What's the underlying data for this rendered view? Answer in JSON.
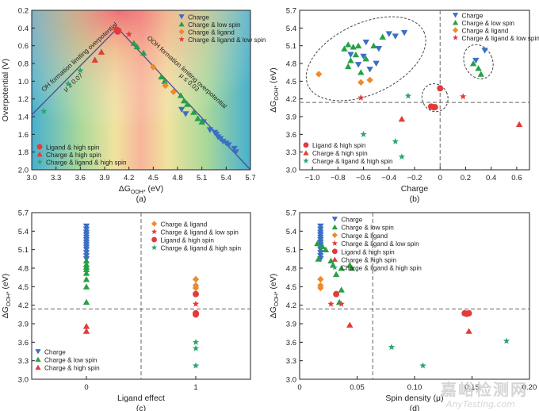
{
  "colors": {
    "charge": "#3a6fc4",
    "charge_low_spin": "#27a046",
    "charge_ligand": "#ef8a2a",
    "charge_ligand_low_spin": "#e23b3b",
    "ligand_high_spin": "#e23b3b",
    "charge_high_spin": "#e23b3b",
    "charge_ligand_high_spin": "#2fa56e",
    "dashed": "#666666",
    "line": "#4b4b9a"
  },
  "watermark": {
    "cn": "嘉峪检测网",
    "en": "AnyTesting.com"
  },
  "chart_data": [
    {
      "type": "scatter",
      "panel_label": "(a)",
      "xlabel": "ΔG",
      "xlabel_sub": "OOH*",
      "xlabel_unit": " (eV)",
      "ylabel": "Overpotential (V)",
      "xlim": [
        3.0,
        5.7
      ],
      "ylim": [
        0.2,
        2.0
      ],
      "y_inverted": true,
      "xticks": [
        "3.0",
        "3.3",
        "3.6",
        "3.9",
        "4.2",
        "4.5",
        "4.8",
        "5.1",
        "5.4",
        "5.7"
      ],
      "yticks": [
        "0.2",
        "0.4",
        "0.6",
        "0.8",
        "1.0",
        "1.2",
        "1.4",
        "1.6",
        "1.8",
        "2.0"
      ],
      "volcano_peak": [
        4.06,
        0.4
      ],
      "annotations": {
        "left_line": "OH formation limiting overpotential",
        "right_line": "OOH formation limiting overpotential",
        "left_mu": "μ ≥ 0.07",
        "right_mu": "μ ≤ 0.03"
      },
      "legend_top": [
        "Charge",
        "Charge & low spin",
        "Charge & ligand",
        "Charge & ligand & low spin"
      ],
      "legend_bottom": [
        "Ligand & high spin",
        "Charge & high spin",
        "Charge & ligand & high spin"
      ],
      "series": [
        {
          "name": "Charge",
          "marker": "tri-down",
          "color": "#3a6fc4",
          "points": [
            [
              4.85,
              1.32
            ],
            [
              4.9,
              1.37
            ],
            [
              5.12,
              1.46
            ],
            [
              5.2,
              1.55
            ],
            [
              5.26,
              1.58
            ],
            [
              5.28,
              1.6
            ],
            [
              5.3,
              1.63
            ],
            [
              5.33,
              1.65
            ],
            [
              5.36,
              1.68
            ],
            [
              5.4,
              1.7
            ],
            [
              5.43,
              1.72
            ],
            [
              5.5,
              1.76
            ],
            [
              5.52,
              1.8
            ]
          ]
        },
        {
          "name": "Charge & low spin",
          "marker": "tri-up",
          "color": "#27a046",
          "points": [
            [
              4.26,
              0.57
            ],
            [
              4.3,
              0.61
            ],
            [
              4.38,
              0.68
            ],
            [
              4.6,
              0.95
            ],
            [
              4.64,
              1.0
            ],
            [
              4.84,
              1.16
            ],
            [
              4.88,
              1.22
            ],
            [
              4.92,
              1.26
            ],
            [
              5.0,
              1.35
            ],
            [
              5.05,
              1.42
            ],
            [
              5.1,
              1.46
            ]
          ]
        },
        {
          "name": "Charge & ligand",
          "marker": "diamond",
          "color": "#ef8a2a",
          "points": [
            [
              4.5,
              0.84
            ],
            [
              4.65,
              1.05
            ],
            [
              4.75,
              1.12
            ]
          ]
        },
        {
          "name": "Charge & ligand & low spin",
          "marker": "star",
          "color": "#e23b3b",
          "points": [
            [
              4.2,
              0.47
            ]
          ]
        },
        {
          "name": "Ligand & high spin",
          "marker": "circle",
          "color": "#e23b3b",
          "points": [
            [
              4.05,
              0.42
            ],
            [
              4.06,
              0.44
            ],
            [
              4.07,
              0.43
            ]
          ]
        },
        {
          "name": "Charge & high spin",
          "marker": "tri-up",
          "color": "#e23b3b",
          "points": [
            [
              3.78,
              0.76
            ],
            [
              3.86,
              0.67
            ]
          ]
        },
        {
          "name": "Charge & ligand & high spin",
          "marker": "star",
          "color": "#2fa56e",
          "points": [
            [
              3.15,
              1.34
            ],
            [
              3.45,
              1.03
            ],
            [
              3.6,
              0.88
            ]
          ]
        }
      ]
    },
    {
      "type": "scatter",
      "panel_label": "(b)",
      "xlabel": "Charge",
      "ylabel": "ΔG",
      "ylabel_sub": "OOH*",
      "ylabel_unit": " (eV)",
      "xlim": [
        -1.1,
        0.7
      ],
      "ylim": [
        3.0,
        5.7
      ],
      "xticks": [
        "−1.0",
        "−0.8",
        "−0.6",
        "−0.4",
        "−0.2",
        "0",
        "0.2",
        "0.4",
        "0.6"
      ],
      "yticks": [
        "3.0",
        "3.3",
        "3.6",
        "3.9",
        "4.2",
        "4.5",
        "4.8",
        "5.1",
        "5.4",
        "5.7"
      ],
      "hline": 4.14,
      "vline": 0,
      "legend_top": [
        "Charge",
        "Charge & low spin",
        "Charge & ligand",
        "Charge & ligand & low spin"
      ],
      "legend_bottom": [
        "Ligand & high spin",
        "Charge & high spin",
        "Charge & ligand & high spin"
      ],
      "series": [
        {
          "name": "Charge",
          "marker": "tri-down",
          "color": "#3a6fc4",
          "points": [
            [
              -0.58,
              5.16
            ],
            [
              -0.48,
              5.05
            ],
            [
              -0.4,
              5.3
            ],
            [
              -0.35,
              5.26
            ],
            [
              -0.28,
              5.32
            ],
            [
              -0.7,
              4.95
            ],
            [
              -0.6,
              4.92
            ],
            [
              -0.5,
              4.8
            ],
            [
              -0.64,
              4.78
            ],
            [
              -0.55,
              4.7
            ],
            [
              0.28,
              4.85
            ],
            [
              0.35,
              5.02
            ]
          ]
        },
        {
          "name": "Charge & low spin",
          "marker": "tri-up",
          "color": "#27a046",
          "points": [
            [
              -0.72,
              5.12
            ],
            [
              -0.68,
              5.08
            ],
            [
              -0.64,
              5.1
            ],
            [
              -0.75,
              5.05
            ],
            [
              -0.66,
              4.95
            ],
            [
              -0.7,
              4.85
            ],
            [
              -0.72,
              4.75
            ],
            [
              -0.62,
              4.65
            ],
            [
              -0.58,
              4.88
            ],
            [
              -0.52,
              5.1
            ],
            [
              -0.45,
              5.25
            ],
            [
              0.26,
              4.8
            ],
            [
              0.3,
              4.72
            ],
            [
              0.32,
              4.62
            ]
          ]
        },
        {
          "name": "Charge & ligand",
          "marker": "diamond",
          "color": "#ef8a2a",
          "points": [
            [
              -0.95,
              4.62
            ],
            [
              -0.62,
              4.48
            ],
            [
              -0.55,
              4.52
            ]
          ]
        },
        {
          "name": "Charge & ligand & low spin",
          "marker": "star",
          "color": "#e23b3b",
          "points": [
            [
              -0.62,
              4.22
            ],
            [
              0.18,
              4.24
            ]
          ]
        },
        {
          "name": "Ligand & high spin",
          "marker": "circle",
          "color": "#e23b3b",
          "points": [
            [
              -0.07,
              4.07
            ],
            [
              -0.05,
              4.06
            ],
            [
              -0.04,
              4.06
            ],
            [
              0.0,
              4.38
            ]
          ]
        },
        {
          "name": "Charge & high spin",
          "marker": "tri-up",
          "color": "#e23b3b",
          "points": [
            [
              -0.3,
              3.86
            ],
            [
              0.62,
              3.77
            ]
          ]
        },
        {
          "name": "Charge & ligand & high spin",
          "marker": "star",
          "color": "#2fa56e",
          "points": [
            [
              -0.6,
              3.6
            ],
            [
              -0.35,
              3.48
            ],
            [
              -0.3,
              3.22
            ],
            [
              -0.25,
              4.25
            ]
          ]
        }
      ],
      "ellipses": [
        {
          "cx": -0.58,
          "cy": 4.88,
          "rx": 0.5,
          "ry": 0.6
        },
        {
          "cx": -0.04,
          "cy": 4.22,
          "rx": 0.1,
          "ry": 0.24
        },
        {
          "cx": 0.3,
          "cy": 4.83,
          "rx": 0.11,
          "ry": 0.3
        }
      ]
    },
    {
      "type": "scatter",
      "panel_label": "(c)",
      "xlabel": "Ligand effect",
      "ylabel": "ΔG",
      "ylabel_sub": "OOH*",
      "ylabel_unit": " (eV)",
      "xlim": [
        -0.5,
        1.5
      ],
      "ylim": [
        3.0,
        5.7
      ],
      "xticks": [
        "0",
        "1"
      ],
      "yticks": [
        "3.0",
        "3.3",
        "3.6",
        "3.9",
        "4.2",
        "4.5",
        "4.8",
        "5.1",
        "5.4",
        "5.7"
      ],
      "hline": 4.14,
      "vline": 0.5,
      "legend_left": [
        "Charge",
        "Charge & low spin",
        "Charge & high spin"
      ],
      "legend_right": [
        "Charge & ligand",
        "Charge & ligand & low spin",
        "Ligand & high spin",
        "Charge & ligand & high spin"
      ],
      "series": [
        {
          "name": "Charge",
          "marker": "tri-down",
          "color": "#3a6fc4",
          "points": [
            [
              0,
              5.48
            ],
            [
              0,
              5.43
            ],
            [
              0,
              5.38
            ],
            [
              0,
              5.34
            ],
            [
              0,
              5.3
            ],
            [
              0,
              5.26
            ],
            [
              0,
              5.22
            ],
            [
              0,
              5.18
            ],
            [
              0,
              5.14
            ],
            [
              0,
              5.1
            ],
            [
              0,
              5.05
            ],
            [
              0,
              5.0
            ],
            [
              0,
              4.95
            ]
          ]
        },
        {
          "name": "Charge & low spin",
          "marker": "tri-up",
          "color": "#27a046",
          "points": [
            [
              0,
              4.92
            ],
            [
              0,
              4.86
            ],
            [
              0,
              4.82
            ],
            [
              0,
              4.78
            ],
            [
              0,
              4.72
            ],
            [
              0,
              4.62
            ],
            [
              0,
              4.5
            ],
            [
              0,
              4.25
            ]
          ]
        },
        {
          "name": "Charge & high spin",
          "marker": "tri-up",
          "color": "#e23b3b",
          "points": [
            [
              0,
              3.86
            ],
            [
              0,
              3.78
            ]
          ]
        },
        {
          "name": "Charge & ligand",
          "marker": "diamond",
          "color": "#ef8a2a",
          "points": [
            [
              1,
              4.62
            ],
            [
              1,
              4.52
            ],
            [
              1,
              4.48
            ]
          ]
        },
        {
          "name": "Charge & ligand & low spin",
          "marker": "star",
          "color": "#e23b3b",
          "points": [
            [
              1,
              4.22
            ]
          ]
        },
        {
          "name": "Ligand & high spin",
          "marker": "circle",
          "color": "#e23b3b",
          "points": [
            [
              1,
              4.38
            ],
            [
              1,
              4.07
            ],
            [
              1,
              4.05
            ]
          ]
        },
        {
          "name": "Charge & ligand & high spin",
          "marker": "star",
          "color": "#2fa56e",
          "points": [
            [
              1,
              3.6
            ],
            [
              1,
              3.5
            ],
            [
              1,
              3.22
            ]
          ]
        }
      ]
    },
    {
      "type": "scatter",
      "panel_label": "(d)",
      "xlabel": "Spin density (μ)",
      "ylabel": "ΔG",
      "ylabel_sub": "OOH*",
      "ylabel_unit": " (eV)",
      "xlim": [
        -0.02,
        0.2
      ],
      "ylim": [
        3.0,
        5.7
      ],
      "xticks": [
        "0",
        "0.05",
        "0.10",
        "0.15",
        "0.20"
      ],
      "yticks": [
        "3.0",
        "3.3",
        "3.6",
        "3.9",
        "4.2",
        "4.5",
        "4.8",
        "5.1",
        "5.4",
        "5.7"
      ],
      "hline": 4.14,
      "vline": 0.05,
      "legend": [
        "Charge",
        "Charge & low spin",
        "Charge & ligand",
        "Charge & ligand & low spin",
        "Ligand & high spin",
        "Charge & high spin",
        "Charge & ligand & high spin"
      ],
      "series": [
        {
          "name": "Charge",
          "marker": "tri-down",
          "color": "#3a6fc4",
          "points": [
            [
              0,
              5.48
            ],
            [
              0,
              5.43
            ],
            [
              0,
              5.38
            ],
            [
              0,
              5.34
            ],
            [
              0,
              5.3
            ],
            [
              0,
              5.26
            ],
            [
              0,
              5.22
            ],
            [
              0,
              5.18
            ],
            [
              0,
              5.14
            ],
            [
              0,
              5.1
            ],
            [
              0,
              5.05
            ],
            [
              0,
              5.0
            ],
            [
              0,
              4.95
            ]
          ]
        },
        {
          "name": "Charge & low spin",
          "marker": "tri-up",
          "color": "#27a046",
          "points": [
            [
              -0.003,
              5.2
            ],
            [
              0.002,
              5.15
            ],
            [
              0.005,
              5.1
            ],
            [
              -0.002,
              4.95
            ],
            [
              0.01,
              4.92
            ],
            [
              0.012,
              4.85
            ],
            [
              0.02,
              4.8
            ],
            [
              0.028,
              4.85
            ],
            [
              0.03,
              4.8
            ],
            [
              0.015,
              4.7
            ],
            [
              0.02,
              4.45
            ],
            [
              0.018,
              4.25
            ]
          ]
        },
        {
          "name": "Charge & ligand",
          "marker": "diamond",
          "color": "#ef8a2a",
          "points": [
            [
              0,
              4.62
            ],
            [
              0,
              4.52
            ],
            [
              0,
              4.48
            ]
          ]
        },
        {
          "name": "Charge & ligand & low spin",
          "marker": "star",
          "color": "#e23b3b",
          "points": [
            [
              0.01,
              4.22
            ],
            [
              0.02,
              4.22
            ]
          ]
        },
        {
          "name": "Ligand & high spin",
          "marker": "circle",
          "color": "#e23b3b",
          "points": [
            [
              0.015,
              4.38
            ],
            [
              0.138,
              4.07
            ],
            [
              0.14,
              4.06
            ],
            [
              0.142,
              4.07
            ]
          ]
        },
        {
          "name": "Charge & high spin",
          "marker": "tri-up",
          "color": "#e23b3b",
          "points": [
            [
              0.028,
              3.88
            ],
            [
              0.142,
              3.78
            ]
          ]
        },
        {
          "name": "Charge & ligand & high spin",
          "marker": "star",
          "color": "#2fa56e",
          "points": [
            [
              0.068,
              3.52
            ],
            [
              0.098,
              3.22
            ],
            [
              0.178,
              3.62
            ]
          ]
        }
      ]
    }
  ]
}
